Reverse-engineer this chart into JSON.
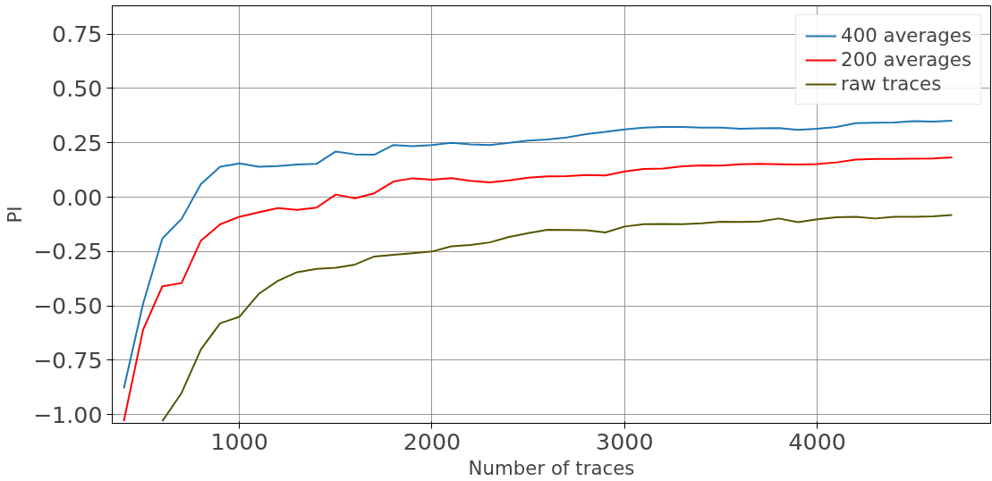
{
  "chart_data": {
    "type": "line",
    "xlabel": "Number of traces",
    "ylabel": "PI",
    "xlim": [
      340,
      4900
    ],
    "ylim": [
      -1.04,
      0.88
    ],
    "xticks": [
      1000,
      2000,
      3000,
      4000
    ],
    "yticks": [
      {
        "value": -1.0,
        "label": "−1.00"
      },
      {
        "value": -0.75,
        "label": "−0.75"
      },
      {
        "value": -0.5,
        "label": "−0.50"
      },
      {
        "value": -0.25,
        "label": "−0.25"
      },
      {
        "value": 0.0,
        "label": "0.00"
      },
      {
        "value": 0.25,
        "label": "0.25"
      },
      {
        "value": 0.5,
        "label": "0.50"
      },
      {
        "value": 0.75,
        "label": "0.75"
      }
    ],
    "grid": true,
    "legend": "top right",
    "line_style": "solid",
    "marker": "none",
    "series": [
      {
        "name": "400 averages",
        "color": "#1f77b4",
        "x": [
          400,
          500,
          600,
          700,
          800,
          900,
          1000,
          1100,
          1200,
          1300,
          1400,
          1500,
          1600,
          1700,
          1800,
          1900,
          2000,
          2100,
          2200,
          2300,
          2400,
          2500,
          2600,
          2700,
          2800,
          2900,
          3000,
          3100,
          3200,
          3300,
          3400,
          3500,
          3600,
          3700,
          3800,
          3900,
          4000,
          4100,
          4200,
          4300,
          4400,
          4500,
          4600,
          4700
        ],
        "values": [
          -0.88,
          -0.49,
          -0.19,
          -0.1,
          0.06,
          0.14,
          0.155,
          0.14,
          0.143,
          0.15,
          0.153,
          0.21,
          0.197,
          0.195,
          0.24,
          0.235,
          0.24,
          0.25,
          0.243,
          0.24,
          0.25,
          0.26,
          0.265,
          0.275,
          0.29,
          0.3,
          0.312,
          0.32,
          0.323,
          0.323,
          0.32,
          0.32,
          0.315,
          0.317,
          0.318,
          0.31,
          0.315,
          0.323,
          0.34,
          0.342,
          0.343,
          0.35,
          0.348,
          0.352
        ]
      },
      {
        "name": "200 averages",
        "color": "#ff0000",
        "x": [
          400,
          500,
          600,
          700,
          800,
          900,
          1000,
          1100,
          1200,
          1300,
          1400,
          1500,
          1600,
          1700,
          1800,
          1900,
          2000,
          2100,
          2200,
          2300,
          2400,
          2500,
          2600,
          2700,
          2800,
          2900,
          3000,
          3100,
          3200,
          3300,
          3400,
          3500,
          3600,
          3700,
          3800,
          3900,
          4000,
          4100,
          4200,
          4300,
          4400,
          4500,
          4600,
          4700
        ],
        "values": [
          -1.03,
          -0.61,
          -0.41,
          -0.395,
          -0.2,
          -0.125,
          -0.09,
          -0.07,
          -0.05,
          -0.058,
          -0.048,
          0.012,
          -0.005,
          0.018,
          0.072,
          0.087,
          0.08,
          0.088,
          0.075,
          0.068,
          0.077,
          0.09,
          0.096,
          0.097,
          0.102,
          0.1,
          0.118,
          0.13,
          0.132,
          0.142,
          0.146,
          0.145,
          0.151,
          0.153,
          0.151,
          0.15,
          0.152,
          0.16,
          0.173,
          0.176,
          0.176,
          0.177,
          0.178,
          0.183
        ]
      },
      {
        "name": "raw traces",
        "color": "#555500",
        "x": [
          600,
          700,
          800,
          900,
          1000,
          1100,
          1200,
          1300,
          1400,
          1500,
          1600,
          1700,
          1800,
          1900,
          2000,
          2100,
          2200,
          2300,
          2400,
          2500,
          2600,
          2700,
          2800,
          2900,
          3000,
          3100,
          3200,
          3300,
          3400,
          3500,
          3600,
          3700,
          3800,
          3900,
          4000,
          4100,
          4200,
          4300,
          4400,
          4500,
          4600,
          4700
        ],
        "values": [
          -1.03,
          -0.9,
          -0.7,
          -0.58,
          -0.55,
          -0.445,
          -0.385,
          -0.345,
          -0.33,
          -0.325,
          -0.31,
          -0.273,
          -0.265,
          -0.258,
          -0.25,
          -0.226,
          -0.22,
          -0.208,
          -0.183,
          -0.165,
          -0.15,
          -0.151,
          -0.152,
          -0.162,
          -0.135,
          -0.124,
          -0.123,
          -0.124,
          -0.12,
          -0.113,
          -0.114,
          -0.112,
          -0.098,
          -0.115,
          -0.102,
          -0.092,
          -0.09,
          -0.098,
          -0.09,
          -0.09,
          -0.088,
          -0.082
        ]
      }
    ]
  }
}
